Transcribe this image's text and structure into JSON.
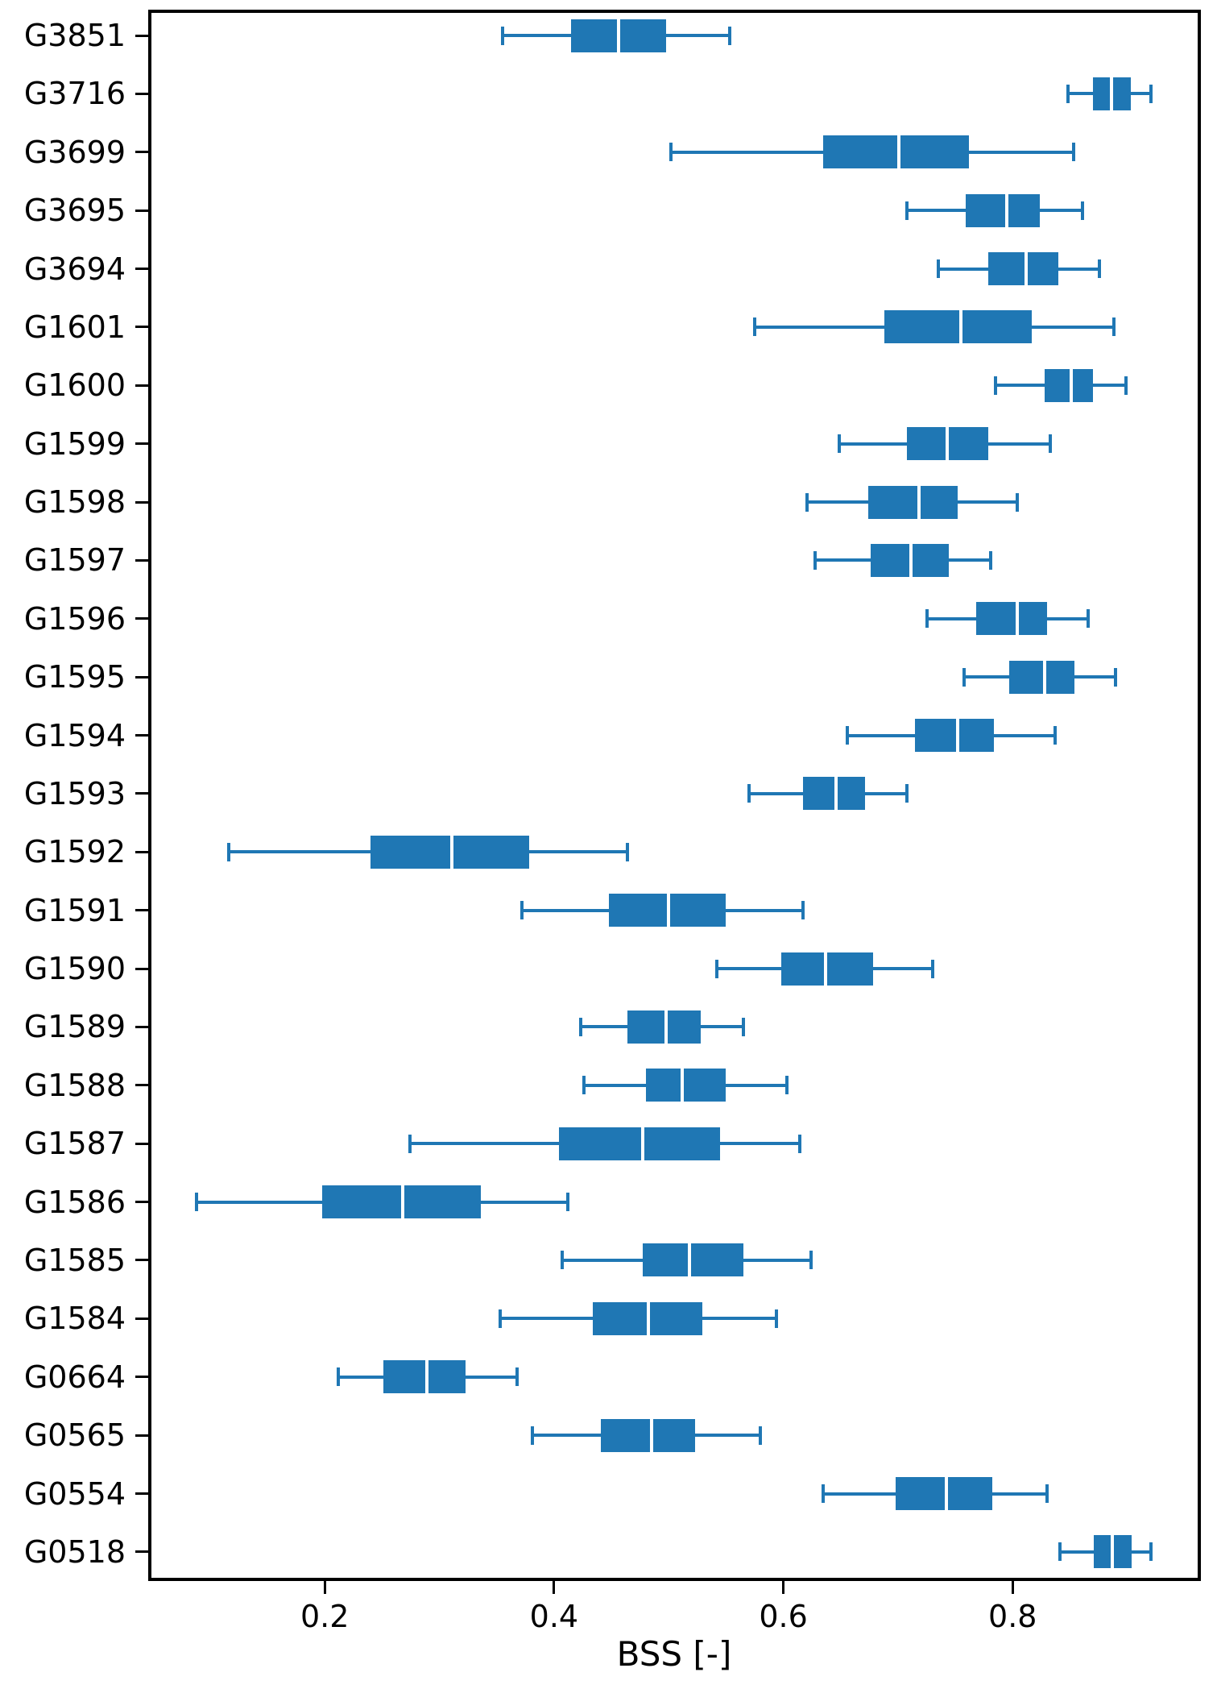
{
  "chart_data": {
    "type": "box",
    "orientation": "horizontal",
    "title": "",
    "xlabel": "BSS [-]",
    "ylabel": "",
    "xlim": [
      0.0488,
      0.9614
    ],
    "x_ticks": [
      0.2,
      0.4,
      0.6,
      0.8
    ],
    "x_tick_labels": [
      "0.2",
      "0.4",
      "0.6",
      "0.8"
    ],
    "grid": false,
    "legend": false,
    "categories": [
      "G3851",
      "G3716",
      "G3699",
      "G3695",
      "G3694",
      "G1601",
      "G1600",
      "G1599",
      "G1598",
      "G1597",
      "G1596",
      "G1595",
      "G1594",
      "G1593",
      "G1592",
      "G1591",
      "G1590",
      "G1589",
      "G1588",
      "G1587",
      "G1586",
      "G1585",
      "G1584",
      "G0664",
      "G0565",
      "G0554",
      "G0518"
    ],
    "series": [
      {
        "label": "G3851",
        "whislo": 0.355,
        "q1": 0.415,
        "med": 0.456,
        "q3": 0.498,
        "whishi": 0.553
      },
      {
        "label": "G3716",
        "whislo": 0.848,
        "q1": 0.87,
        "med": 0.886,
        "q3": 0.903,
        "whishi": 0.921
      },
      {
        "label": "G3699",
        "whislo": 0.502,
        "q1": 0.635,
        "med": 0.701,
        "q3": 0.762,
        "whishi": 0.853
      },
      {
        "label": "G3695",
        "whislo": 0.708,
        "q1": 0.759,
        "med": 0.795,
        "q3": 0.824,
        "whishi": 0.861
      },
      {
        "label": "G3694",
        "whislo": 0.735,
        "q1": 0.779,
        "med": 0.812,
        "q3": 0.84,
        "whishi": 0.876
      },
      {
        "label": "G1601",
        "whislo": 0.575,
        "q1": 0.688,
        "med": 0.755,
        "q3": 0.817,
        "whishi": 0.888
      },
      {
        "label": "G1600",
        "whislo": 0.785,
        "q1": 0.828,
        "med": 0.851,
        "q3": 0.87,
        "whishi": 0.899
      },
      {
        "label": "G1599",
        "whislo": 0.649,
        "q1": 0.708,
        "med": 0.743,
        "q3": 0.779,
        "whishi": 0.833
      },
      {
        "label": "G1598",
        "whislo": 0.621,
        "q1": 0.674,
        "med": 0.718,
        "q3": 0.752,
        "whishi": 0.804
      },
      {
        "label": "G1597",
        "whislo": 0.628,
        "q1": 0.676,
        "med": 0.711,
        "q3": 0.744,
        "whishi": 0.781
      },
      {
        "label": "G1596",
        "whislo": 0.725,
        "q1": 0.768,
        "med": 0.804,
        "q3": 0.83,
        "whishi": 0.866
      },
      {
        "label": "G1595",
        "whislo": 0.758,
        "q1": 0.797,
        "med": 0.828,
        "q3": 0.854,
        "whishi": 0.89
      },
      {
        "label": "G1594",
        "whislo": 0.656,
        "q1": 0.715,
        "med": 0.752,
        "q3": 0.784,
        "whishi": 0.837
      },
      {
        "label": "G1593",
        "whislo": 0.57,
        "q1": 0.617,
        "med": 0.646,
        "q3": 0.671,
        "whishi": 0.708
      },
      {
        "label": "G1592",
        "whislo": 0.116,
        "q1": 0.24,
        "med": 0.311,
        "q3": 0.378,
        "whishi": 0.464
      },
      {
        "label": "G1591",
        "whislo": 0.372,
        "q1": 0.448,
        "med": 0.5,
        "q3": 0.55,
        "whishi": 0.617
      },
      {
        "label": "G1590",
        "whislo": 0.542,
        "q1": 0.598,
        "med": 0.637,
        "q3": 0.678,
        "whishi": 0.73
      },
      {
        "label": "G1589",
        "whislo": 0.423,
        "q1": 0.464,
        "med": 0.498,
        "q3": 0.528,
        "whishi": 0.565
      },
      {
        "label": "G1588",
        "whislo": 0.426,
        "q1": 0.48,
        "med": 0.512,
        "q3": 0.55,
        "whishi": 0.603
      },
      {
        "label": "G1587",
        "whislo": 0.274,
        "q1": 0.404,
        "med": 0.477,
        "q3": 0.545,
        "whishi": 0.614
      },
      {
        "label": "G1586",
        "whislo": 0.088,
        "q1": 0.198,
        "med": 0.268,
        "q3": 0.336,
        "whishi": 0.412
      },
      {
        "label": "G1585",
        "whislo": 0.407,
        "q1": 0.477,
        "med": 0.518,
        "q3": 0.565,
        "whishi": 0.624
      },
      {
        "label": "G1584",
        "whislo": 0.353,
        "q1": 0.434,
        "med": 0.482,
        "q3": 0.529,
        "whishi": 0.594
      },
      {
        "label": "G0664",
        "whislo": 0.212,
        "q1": 0.251,
        "med": 0.289,
        "q3": 0.323,
        "whishi": 0.368
      },
      {
        "label": "G0565",
        "whislo": 0.381,
        "q1": 0.441,
        "med": 0.485,
        "q3": 0.523,
        "whishi": 0.58
      },
      {
        "label": "G0554",
        "whislo": 0.635,
        "q1": 0.698,
        "med": 0.742,
        "q3": 0.782,
        "whishi": 0.83
      },
      {
        "label": "G0518",
        "whislo": 0.841,
        "q1": 0.871,
        "med": 0.887,
        "q3": 0.904,
        "whishi": 0.921
      }
    ]
  },
  "style": {
    "box_fill_color": "#1f77b4",
    "whisker_color": "#1f77b4",
    "median_color": "#ffffff",
    "axis_color": "#000000",
    "background_color": "#ffffff"
  }
}
